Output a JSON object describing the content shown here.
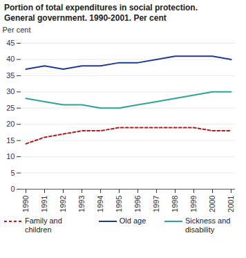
{
  "chart_data": {
    "type": "line",
    "title": "Portion of total expenditures in social protection. General government. 1990-2001. Per cent",
    "y_label": "Per cent",
    "categories": [
      "1990",
      "1991",
      "1992",
      "1993",
      "1994",
      "1995",
      "1996",
      "1997",
      "1998",
      "1999",
      "2000",
      "2001"
    ],
    "series": [
      {
        "name": "Family and children",
        "color": "#b01c1c",
        "line_style": "dashed",
        "values": [
          14,
          16,
          17,
          18,
          18,
          19,
          19,
          19,
          19,
          19,
          18,
          18
        ]
      },
      {
        "name": "Old age",
        "color": "#1f3a93",
        "line_style": "solid",
        "values": [
          37,
          38,
          37,
          38,
          38,
          39,
          39,
          40,
          41,
          41,
          41,
          40
        ]
      },
      {
        "name": "Sickness and disability",
        "color": "#2aa39b",
        "line_style": "solid",
        "values": [
          28,
          27,
          26,
          26,
          25,
          25,
          26,
          27,
          28,
          29,
          30,
          30
        ]
      }
    ],
    "ylim": [
      0,
      45
    ],
    "yticks": [
      0,
      5,
      10,
      15,
      20,
      25,
      30,
      35,
      40,
      45
    ],
    "grid": true,
    "legend": "bottom"
  }
}
